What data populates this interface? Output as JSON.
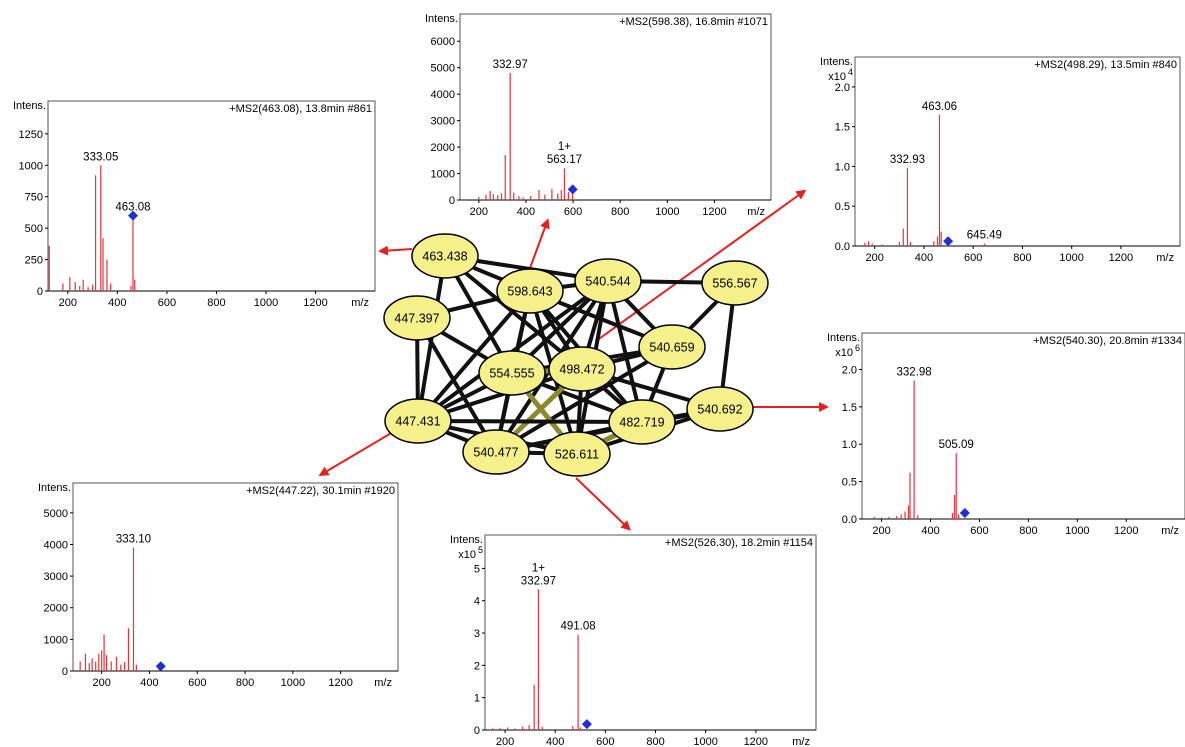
{
  "colors": {
    "peak": "#e8323c",
    "precursor": "#1f2fd6",
    "node_fill": "#f5f08a",
    "node_stroke": "#000000",
    "edge": "#111111",
    "edge_hl": "#8a8a2a",
    "arrow": "#e8201c"
  },
  "chart_data": [
    {
      "type": "spectrum",
      "ylabel": "Intens.",
      "xlabel": "m/z",
      "title": "+MS2(463.08), 13.8min #861",
      "y_multiplier_label": "",
      "xlim": [
        120,
        1440
      ],
      "xticks": [
        200,
        400,
        600,
        800,
        1000,
        1200
      ],
      "ylim": [
        0,
        1400
      ],
      "yticks": [
        0,
        250,
        500,
        750,
        1000,
        1250
      ],
      "ytick_labels": [
        "0",
        "250",
        "500",
        "750",
        "1000",
        "1250"
      ],
      "peaks": [
        [
          125,
          360
        ],
        [
          180,
          60
        ],
        [
          208,
          110
        ],
        [
          230,
          70
        ],
        [
          248,
          40
        ],
        [
          262,
          90
        ],
        [
          282,
          30
        ],
        [
          300,
          50
        ],
        [
          312,
          920
        ],
        [
          333.05,
          1000
        ],
        [
          342,
          420
        ],
        [
          358,
          250
        ],
        [
          373,
          60
        ],
        [
          455,
          40
        ],
        [
          463.08,
          600
        ],
        [
          470,
          90
        ]
      ],
      "peak_labels": [
        {
          "x": 333.05,
          "y": 1000,
          "text": "333.05"
        },
        {
          "x": 463.08,
          "y": 600,
          "text": "463.08"
        }
      ],
      "precursor": {
        "x": 463.08,
        "y": 600
      }
    },
    {
      "type": "spectrum",
      "ylabel": "Intens.",
      "xlabel": "m/z",
      "title": "+MS2(598.38), 16.8min #1071",
      "y_multiplier_label": "",
      "xlim": [
        120,
        1440
      ],
      "xticks": [
        200,
        400,
        600,
        800,
        1000,
        1200
      ],
      "ylim": [
        0,
        6500
      ],
      "yticks": [
        0,
        1000,
        2000,
        3000,
        4000,
        5000,
        6000
      ],
      "ytick_labels": [
        "0",
        "1000",
        "2000",
        "3000",
        "4000",
        "5000",
        "6000"
      ],
      "peaks": [
        [
          200,
          120
        ],
        [
          230,
          200
        ],
        [
          248,
          350
        ],
        [
          262,
          220
        ],
        [
          280,
          180
        ],
        [
          296,
          250
        ],
        [
          312,
          1700
        ],
        [
          332.97,
          4800
        ],
        [
          348,
          280
        ],
        [
          370,
          150
        ],
        [
          388,
          100
        ],
        [
          420,
          150
        ],
        [
          455,
          380
        ],
        [
          480,
          200
        ],
        [
          510,
          420
        ],
        [
          535,
          250
        ],
        [
          550,
          380
        ],
        [
          563.17,
          1200
        ],
        [
          580,
          300
        ],
        [
          598,
          400
        ]
      ],
      "peak_labels": [
        {
          "x": 332.97,
          "y": 4800,
          "text": "332.97"
        },
        {
          "x": 563.17,
          "y": 1200,
          "text": "1+\n563.17"
        }
      ],
      "precursor": {
        "x": 598.38,
        "y": 400
      }
    },
    {
      "type": "spectrum",
      "ylabel": "Intens.",
      "xlabel": "m/z",
      "title": "+MS2(498.29), 13.5min #840",
      "y_multiplier_label": "x10",
      "y_exponent": "4",
      "xlim": [
        120,
        1440
      ],
      "xticks": [
        200,
        400,
        600,
        800,
        1000,
        1200
      ],
      "ylim": [
        0,
        2.2
      ],
      "yticks": [
        0,
        0.5,
        1.0,
        1.5,
        2.0
      ],
      "ytick_labels": [
        "0.0",
        "0.5",
        "1.0",
        "1.5",
        "2.0"
      ],
      "peaks": [
        [
          160,
          0.04
        ],
        [
          175,
          0.06
        ],
        [
          190,
          0.03
        ],
        [
          230,
          0.02
        ],
        [
          300,
          0.05
        ],
        [
          316,
          0.22
        ],
        [
          332.93,
          0.98
        ],
        [
          345,
          0.05
        ],
        [
          440,
          0.06
        ],
        [
          455,
          0.12
        ],
        [
          463.06,
          1.65
        ],
        [
          470,
          0.18
        ],
        [
          500,
          0.05
        ],
        [
          645.49,
          0.03
        ]
      ],
      "peak_labels": [
        {
          "x": 332.93,
          "y": 0.98,
          "text": "332.93"
        },
        {
          "x": 463.06,
          "y": 1.65,
          "text": "463.06"
        },
        {
          "x": 645.49,
          "y": 0.03,
          "text": "645.49"
        }
      ],
      "precursor": {
        "x": 498.29,
        "y": 0.06
      }
    },
    {
      "type": "spectrum",
      "ylabel": "Intens.",
      "xlabel": "m/z",
      "title": "+MS2(540.30), 20.8min #1334",
      "y_multiplier_label": "x10",
      "y_exponent": "6",
      "xlim": [
        120,
        1440
      ],
      "xticks": [
        200,
        400,
        600,
        800,
        1000,
        1200
      ],
      "ylim": [
        0,
        2.3
      ],
      "yticks": [
        0,
        0.5,
        1.0,
        1.5,
        2.0
      ],
      "ytick_labels": [
        "0.0",
        "0.5",
        "1.0",
        "1.5",
        "2.0"
      ],
      "peaks": [
        [
          170,
          0.03
        ],
        [
          200,
          0.02
        ],
        [
          230,
          0.03
        ],
        [
          262,
          0.04
        ],
        [
          280,
          0.06
        ],
        [
          296,
          0.1
        ],
        [
          310,
          0.18
        ],
        [
          316,
          0.62
        ],
        [
          332.98,
          1.85
        ],
        [
          348,
          0.05
        ],
        [
          490,
          0.08
        ],
        [
          498,
          0.32
        ],
        [
          505.09,
          0.88
        ],
        [
          515,
          0.06
        ]
      ],
      "peak_labels": [
        {
          "x": 332.98,
          "y": 1.85,
          "text": "332.98"
        },
        {
          "x": 505.09,
          "y": 0.88,
          "text": "505.09"
        }
      ],
      "precursor": {
        "x": 540.3,
        "y": 0.08
      }
    },
    {
      "type": "spectrum",
      "ylabel": "Intens.",
      "xlabel": "m/z",
      "title": "+MS2(447.22), 30.1min #1920",
      "y_multiplier_label": "",
      "xlim": [
        80,
        1440
      ],
      "xticks": [
        200,
        400,
        600,
        800,
        1000,
        1200
      ],
      "ylim": [
        0,
        5500
      ],
      "yticks": [
        0,
        1000,
        2000,
        3000,
        4000,
        5000
      ],
      "ytick_labels": [
        "0",
        "1000",
        "2000",
        "3000",
        "4000",
        "5000"
      ],
      "peaks": [
        [
          110,
          300
        ],
        [
          132,
          550
        ],
        [
          148,
          250
        ],
        [
          160,
          400
        ],
        [
          175,
          300
        ],
        [
          188,
          550
        ],
        [
          200,
          650
        ],
        [
          210,
          1150
        ],
        [
          220,
          500
        ],
        [
          240,
          300
        ],
        [
          262,
          450
        ],
        [
          280,
          200
        ],
        [
          296,
          280
        ],
        [
          312,
          1350
        ],
        [
          333.1,
          3900
        ],
        [
          345,
          200
        ],
        [
          440,
          80
        ]
      ],
      "peak_labels": [
        {
          "x": 333.1,
          "y": 3900,
          "text": "333.10"
        }
      ],
      "precursor": {
        "x": 447.22,
        "y": 150
      }
    },
    {
      "type": "spectrum",
      "ylabel": "Intens.",
      "xlabel": "m/z",
      "title": "+MS2(526.30), 18.2min #1154",
      "y_multiplier_label": "x10",
      "y_exponent": "5",
      "xlim": [
        120,
        1440
      ],
      "xticks": [
        200,
        400,
        600,
        800,
        1000,
        1200
      ],
      "ylim": [
        0,
        5.6
      ],
      "yticks": [
        0,
        1,
        2,
        3,
        4,
        5
      ],
      "ytick_labels": [
        "0",
        "1",
        "2",
        "3",
        "4",
        "5"
      ],
      "peaks": [
        [
          150,
          0.05
        ],
        [
          180,
          0.06
        ],
        [
          210,
          0.08
        ],
        [
          240,
          0.05
        ],
        [
          270,
          0.1
        ],
        [
          296,
          0.15
        ],
        [
          316,
          1.4
        ],
        [
          332.97,
          4.35
        ],
        [
          348,
          0.1
        ],
        [
          470,
          0.12
        ],
        [
          491.08,
          2.95
        ],
        [
          500,
          0.08
        ]
      ],
      "peak_labels": [
        {
          "x": 332.97,
          "y": 4.35,
          "text": "1+\n332.97"
        },
        {
          "x": 491.08,
          "y": 2.95,
          "text": "491.08"
        }
      ],
      "precursor": {
        "x": 526.3,
        "y": 0.18
      }
    }
  ],
  "network": {
    "nodes": [
      {
        "id": "n463",
        "label": "463.438"
      },
      {
        "id": "n598",
        "label": "598.643"
      },
      {
        "id": "n447a",
        "label": "447.397"
      },
      {
        "id": "n540a",
        "label": "540.544"
      },
      {
        "id": "n556",
        "label": "556.567"
      },
      {
        "id": "n540b",
        "label": "540.659"
      },
      {
        "id": "n554",
        "label": "554.555"
      },
      {
        "id": "n498",
        "label": "498.472"
      },
      {
        "id": "n447b",
        "label": "447.431"
      },
      {
        "id": "n482",
        "label": "482.719"
      },
      {
        "id": "n540c",
        "label": "540.692"
      },
      {
        "id": "n540d",
        "label": "540.477"
      },
      {
        "id": "n526",
        "label": "526.611"
      }
    ],
    "edges": [
      [
        "n463",
        "n540a"
      ],
      [
        "n463",
        "n598"
      ],
      [
        "n463",
        "n554"
      ],
      [
        "n463",
        "n447b"
      ],
      [
        "n463",
        "n498"
      ],
      [
        "n598",
        "n447a"
      ],
      [
        "n598",
        "n540a"
      ],
      [
        "n598",
        "n554"
      ],
      [
        "n598",
        "n498"
      ],
      [
        "n598",
        "n540b"
      ],
      [
        "n598",
        "n482"
      ],
      [
        "n598",
        "n526"
      ],
      [
        "n598",
        "n540d"
      ],
      [
        "n598",
        "n447b"
      ],
      [
        "n447a",
        "n447b"
      ],
      [
        "n447a",
        "n554"
      ],
      [
        "n447a",
        "n540d"
      ],
      [
        "n540a",
        "n556"
      ],
      [
        "n540a",
        "n554"
      ],
      [
        "n540a",
        "n498"
      ],
      [
        "n540a",
        "n540b"
      ],
      [
        "n540a",
        "n482"
      ],
      [
        "n540a",
        "n447b"
      ],
      [
        "n540a",
        "n526"
      ],
      [
        "n540a",
        "n540d"
      ],
      [
        "n556",
        "n540b"
      ],
      [
        "n556",
        "n540c"
      ],
      [
        "n540b",
        "n498"
      ],
      [
        "n540b",
        "n482"
      ],
      [
        "n540b",
        "n554"
      ],
      [
        "n540b",
        "n540d"
      ],
      [
        "n554",
        "n498"
      ],
      [
        "n554",
        "n447b"
      ],
      [
        "n554",
        "n540d"
      ],
      [
        "n554",
        "n526"
      ],
      [
        "n554",
        "n482"
      ],
      [
        "n498",
        "n447b"
      ],
      [
        "n498",
        "n540d"
      ],
      [
        "n498",
        "n526"
      ],
      [
        "n498",
        "n482"
      ],
      [
        "n498",
        "n540c"
      ],
      [
        "n447b",
        "n540d"
      ],
      [
        "n447b",
        "n526"
      ],
      [
        "n447b",
        "n482"
      ],
      [
        "n482",
        "n540c"
      ],
      [
        "n482",
        "n526"
      ],
      [
        "n482",
        "n540d"
      ],
      [
        "n540c",
        "n526"
      ],
      [
        "n540c",
        "n540d"
      ],
      [
        "n540d",
        "n526"
      ]
    ],
    "highlight_edges": [
      [
        "n554",
        "n498"
      ],
      [
        "n554",
        "n526"
      ],
      [
        "n498",
        "n540d"
      ],
      [
        "n526",
        "n482"
      ]
    ]
  }
}
